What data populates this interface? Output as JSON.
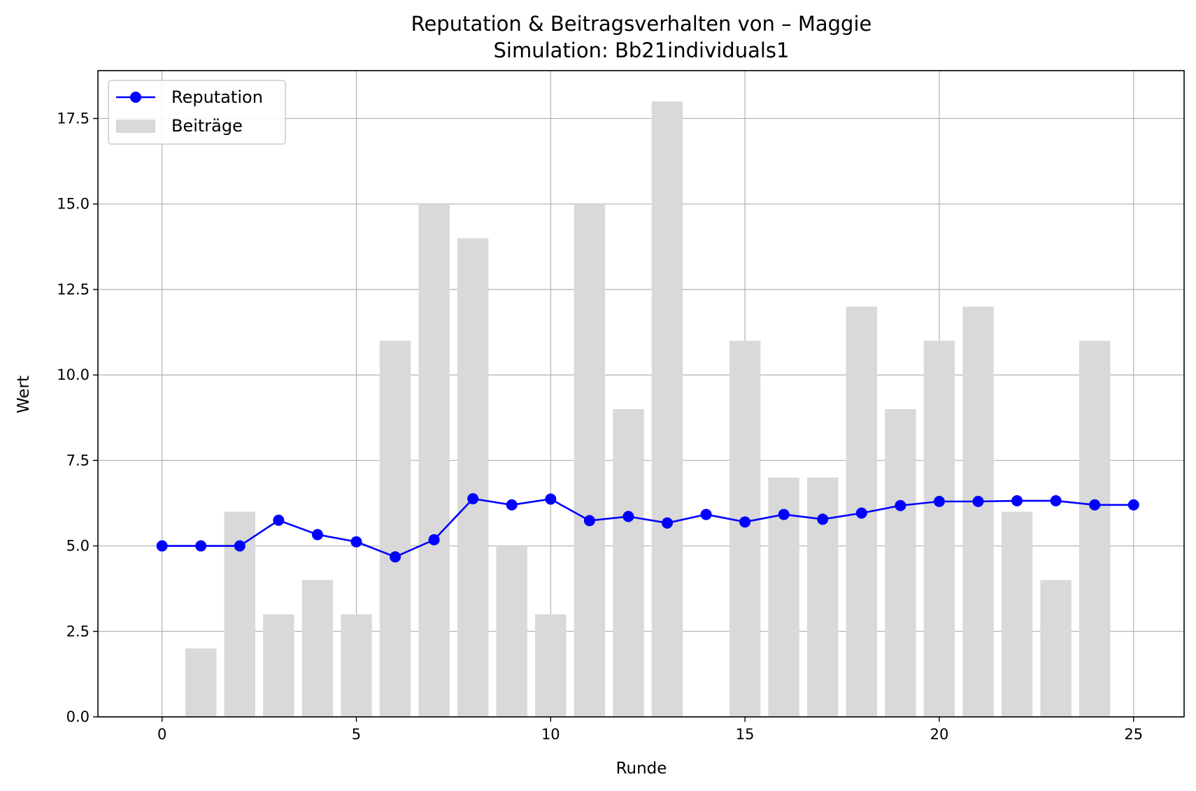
{
  "chart_data": {
    "type": "bar+line",
    "title": "Reputation & Beitragsverhalten von – Maggie",
    "subtitle": "Simulation: Bb21individuals1",
    "xlabel": "Runde",
    "ylabel": "Wert",
    "xlim": [
      -1.65,
      26.3
    ],
    "ylim": [
      0,
      18.9
    ],
    "grid": true,
    "legend_position": "top-left",
    "x_ticks": [
      0,
      5,
      10,
      15,
      20,
      25
    ],
    "x_tick_labels": [
      "0",
      "5",
      "10",
      "15",
      "20",
      "25"
    ],
    "y_ticks": [
      0,
      2.5,
      5,
      7.5,
      10,
      12.5,
      15,
      17.5
    ],
    "y_tick_labels": [
      "0.0",
      "2.5",
      "5.0",
      "7.5",
      "10.0",
      "12.5",
      "15.0",
      "17.5"
    ],
    "series": [
      {
        "name": "Reputation",
        "kind": "line",
        "color": "#0000ff",
        "x": [
          0,
          1,
          2,
          3,
          4,
          5,
          6,
          7,
          8,
          9,
          10,
          11,
          12,
          13,
          14,
          15,
          16,
          17,
          18,
          19,
          20,
          21,
          22,
          23,
          24,
          25
        ],
        "values": [
          5.0,
          5.0,
          5.0,
          5.75,
          5.33,
          5.12,
          4.68,
          5.18,
          6.38,
          6.2,
          6.37,
          5.74,
          5.86,
          5.67,
          5.92,
          5.7,
          5.92,
          5.78,
          5.96,
          6.18,
          6.3,
          6.3,
          6.32,
          6.32,
          6.2,
          6.2
        ]
      },
      {
        "name": "Beiträge",
        "kind": "bar",
        "color": "#d9d9d9",
        "x": [
          1,
          2,
          3,
          4,
          5,
          6,
          7,
          8,
          9,
          10,
          11,
          12,
          13,
          15,
          16,
          17,
          18,
          19,
          20,
          21,
          22,
          23,
          24
        ],
        "values": [
          2,
          6,
          3,
          4,
          3,
          11,
          15,
          14,
          5,
          3,
          15,
          9,
          18,
          11,
          7,
          7,
          12,
          9,
          11,
          12,
          6,
          4,
          11
        ]
      }
    ]
  }
}
